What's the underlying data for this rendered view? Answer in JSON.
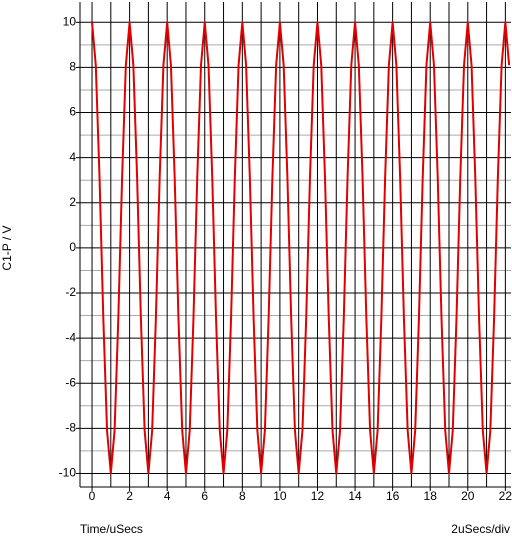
{
  "chart_data": {
    "type": "line",
    "y_label": "C1-P / V",
    "x_label": "Time/uSecs",
    "scale_label": "2uSecs/div",
    "x": [
      0,
      0.2,
      0.4,
      0.6,
      0.8,
      1,
      1.2,
      1.4,
      1.6,
      1.8,
      2,
      2.2,
      2.4,
      2.6,
      2.8,
      3,
      3.2,
      3.4,
      3.6,
      3.8,
      4,
      4.2,
      4.4,
      4.6,
      4.8,
      5,
      5.2,
      5.4,
      5.6,
      5.8,
      6,
      6.2,
      6.4,
      6.6,
      6.8,
      7,
      7.2,
      7.4,
      7.6,
      7.8,
      8,
      8.2,
      8.4,
      8.6,
      8.8,
      9,
      9.2,
      9.4,
      9.6,
      9.8,
      10,
      10.2,
      10.4,
      10.6,
      10.8,
      11,
      11.2,
      11.4,
      11.6,
      11.8,
      12,
      12.2,
      12.4,
      12.6,
      12.8,
      13,
      13.2,
      13.4,
      13.6,
      13.8,
      14,
      14.2,
      14.4,
      14.6,
      14.8,
      15,
      15.2,
      15.4,
      15.6,
      15.8,
      16,
      16.2,
      16.4,
      16.6,
      16.8,
      17,
      17.2,
      17.4,
      17.6,
      17.8,
      18,
      18.2,
      18.4,
      18.6,
      18.8,
      19,
      19.2,
      19.4,
      19.6,
      19.8,
      20,
      20.2,
      20.4,
      20.6,
      20.8,
      21,
      21.2,
      21.4,
      21.6,
      21.8,
      22,
      22.2
    ],
    "series": [
      {
        "color": "#e00000",
        "values": [
          10,
          8.1,
          3.1,
          -3.1,
          -8.1,
          -10,
          -8.1,
          -3.1,
          3.1,
          8.1,
          10,
          8.1,
          3.1,
          -3.1,
          -8.1,
          -10,
          -8.1,
          -3.1,
          3.1,
          8.1,
          10,
          8.1,
          3.1,
          -3.1,
          -8.1,
          -10,
          -8.1,
          -3.1,
          3.1,
          8.1,
          10,
          8.1,
          3.1,
          -3.1,
          -8.1,
          -10,
          -8.1,
          -3.1,
          3.1,
          8.1,
          10,
          8.1,
          3.1,
          -3.1,
          -8.1,
          -10,
          -8.1,
          -3.1,
          3.1,
          8.1,
          10,
          8.1,
          3.1,
          -3.1,
          -8.1,
          -10,
          -8.1,
          -3.1,
          3.1,
          8.1,
          10,
          8.1,
          3.1,
          -3.1,
          -8.1,
          -10,
          -8.1,
          -3.1,
          3.1,
          8.1,
          10,
          8.1,
          3.1,
          -3.1,
          -8.1,
          -10,
          -8.1,
          -3.1,
          3.1,
          8.1,
          10,
          8.1,
          3.1,
          -3.1,
          -8.1,
          -10,
          -8.1,
          -3.1,
          3.1,
          8.1,
          10,
          8.1,
          3.1,
          -3.1,
          -8.1,
          -10,
          -8.1,
          -3.1,
          3.1,
          8.1,
          10,
          8.1,
          3.1,
          -3.1,
          -8.1,
          -10,
          -8.1,
          -3.1,
          3.1,
          8.1,
          10,
          8.1
        ]
      }
    ],
    "xlim": [
      -0.64,
      22.3
    ],
    "xticks": [
      0,
      2,
      4,
      6,
      8,
      10,
      12,
      14,
      16,
      18,
      20,
      22
    ],
    "ylim": [
      -10.6,
      10.9
    ],
    "yticks": [
      -10,
      -8,
      -6,
      -4,
      -2,
      0,
      2,
      4,
      6,
      8,
      10
    ],
    "grid": true
  }
}
